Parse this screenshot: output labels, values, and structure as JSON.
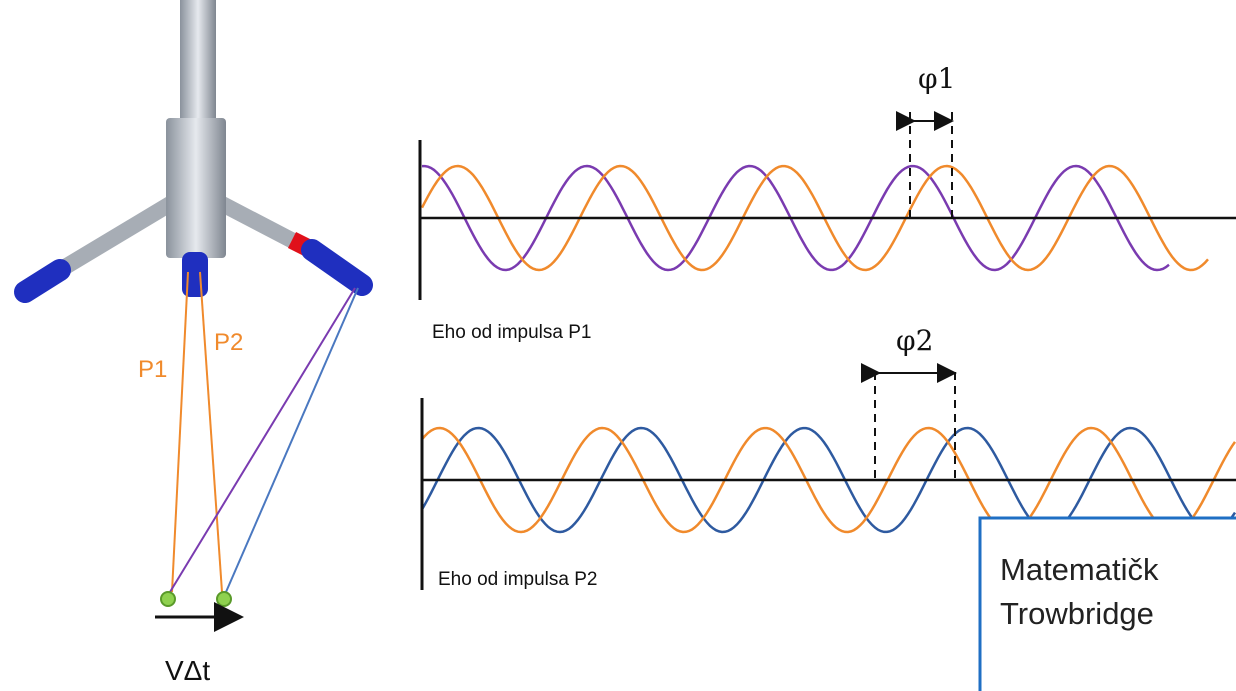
{
  "probe": {
    "beam_labels": [
      "P1",
      "P2"
    ],
    "displacement_label": "VΔt"
  },
  "echoes": [
    {
      "phase_label": "φ1",
      "caption": "Eho od impulsa P1"
    },
    {
      "phase_label": "φ2",
      "caption": "Eho od impulsa P2"
    }
  ],
  "overlay_box": {
    "lines": [
      "Matematičk",
      "Trowbridge"
    ]
  }
}
